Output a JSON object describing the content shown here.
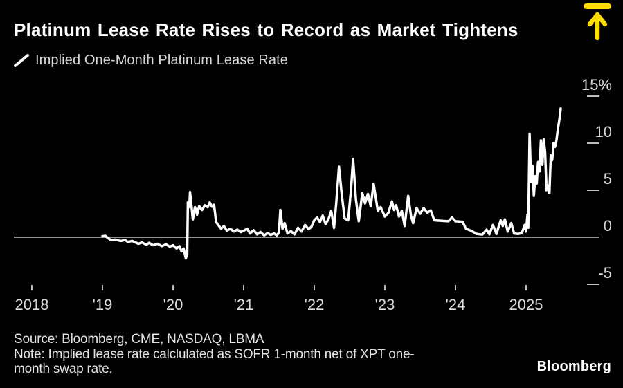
{
  "header": {
    "title": "Platinum Lease Rate Rises to Record as Market Tightens",
    "legend_label": "Implied One-Month Platinum Lease Rate"
  },
  "icons": {
    "record_arrow": "up-arrow-to-bar",
    "legend_mark": "line-swatch"
  },
  "colors": {
    "background": "#000000",
    "accent_yellow": "#FFDC00",
    "series_line": "#ffffff",
    "zero_line": "#919191",
    "tick": "#bdbdbd",
    "axis_label": "#dcdcdc"
  },
  "footer": {
    "source": "Source: Bloomberg, CME, NASDAQ, LBMA",
    "note": "Note: Implied lease rate calclulated as SOFR 1-month net of XPT one-month swap rate.",
    "brand": "Bloomberg"
  },
  "chart_data": {
    "type": "line",
    "title": "Platinum Lease Rate Rises to Record as Market Tightens",
    "series_name": "Implied One-Month Platinum Lease Rate",
    "unit": "%",
    "grid": false,
    "legend_position": "top-left",
    "y_axis_side": "right",
    "x_range": [
      2018,
      2025.9
    ],
    "y_range": [
      -5,
      15
    ],
    "x_ticks": [
      {
        "year": 2018,
        "label": "2018"
      },
      {
        "year": 2019,
        "label": "'19"
      },
      {
        "year": 2020,
        "label": "'20"
      },
      {
        "year": 2021,
        "label": "'21"
      },
      {
        "year": 2022,
        "label": "'22"
      },
      {
        "year": 2023,
        "label": "'23"
      },
      {
        "year": 2024,
        "label": "'24"
      },
      {
        "year": 2025,
        "label": "2025"
      }
    ],
    "y_ticks": [
      {
        "value": 15,
        "label": "15%"
      },
      {
        "value": 10,
        "label": "10"
      },
      {
        "value": 5,
        "label": "5"
      },
      {
        "value": 0,
        "label": "0"
      },
      {
        "value": -5,
        "label": "-5"
      }
    ],
    "points": [
      [
        2019.0,
        0.1
      ],
      [
        2019.04,
        0.15
      ],
      [
        2019.08,
        -0.1
      ],
      [
        2019.12,
        -0.3
      ],
      [
        2019.18,
        -0.25
      ],
      [
        2019.26,
        -0.4
      ],
      [
        2019.32,
        -0.3
      ],
      [
        2019.36,
        -0.5
      ],
      [
        2019.42,
        -0.4
      ],
      [
        2019.51,
        -0.7
      ],
      [
        2019.56,
        -0.55
      ],
      [
        2019.62,
        -0.8
      ],
      [
        2019.66,
        -0.6
      ],
      [
        2019.72,
        -0.85
      ],
      [
        2019.78,
        -0.7
      ],
      [
        2019.84,
        -0.95
      ],
      [
        2019.9,
        -0.75
      ],
      [
        2019.95,
        -1.0
      ],
      [
        2020.0,
        -0.85
      ],
      [
        2020.05,
        -1.2
      ],
      [
        2020.09,
        -0.95
      ],
      [
        2020.12,
        -1.5
      ],
      [
        2020.15,
        -1.2
      ],
      [
        2020.18,
        -2.25
      ],
      [
        2020.2,
        -1.8
      ],
      [
        2020.21,
        3.7
      ],
      [
        2020.23,
        3.2
      ],
      [
        2020.24,
        4.8
      ],
      [
        2020.26,
        3.4
      ],
      [
        2020.28,
        1.9
      ],
      [
        2020.31,
        3.2
      ],
      [
        2020.34,
        2.4
      ],
      [
        2020.37,
        3.3
      ],
      [
        2020.41,
        2.9
      ],
      [
        2020.45,
        3.4
      ],
      [
        2020.49,
        3.2
      ],
      [
        2020.52,
        3.7
      ],
      [
        2020.55,
        3.25
      ],
      [
        2020.58,
        3.45
      ],
      [
        2020.61,
        1.6
      ],
      [
        2020.64,
        1.3
      ],
      [
        2020.68,
        0.9
      ],
      [
        2020.72,
        1.2
      ],
      [
        2020.76,
        0.7
      ],
      [
        2020.81,
        0.9
      ],
      [
        2020.86,
        0.6
      ],
      [
        2020.91,
        0.8
      ],
      [
        2020.96,
        0.55
      ],
      [
        2021.0,
        0.7
      ],
      [
        2021.05,
        0.9
      ],
      [
        2021.09,
        0.4
      ],
      [
        2021.14,
        0.75
      ],
      [
        2021.19,
        0.3
      ],
      [
        2021.24,
        0.55
      ],
      [
        2021.29,
        0.2
      ],
      [
        2021.34,
        0.45
      ],
      [
        2021.38,
        0.25
      ],
      [
        2021.43,
        0.4
      ],
      [
        2021.47,
        0.2
      ],
      [
        2021.5,
        0.5
      ],
      [
        2021.52,
        2.9
      ],
      [
        2021.55,
        0.9
      ],
      [
        2021.58,
        1.5
      ],
      [
        2021.62,
        0.4
      ],
      [
        2021.67,
        0.65
      ],
      [
        2021.72,
        0.3
      ],
      [
        2021.77,
        1.0
      ],
      [
        2021.82,
        0.6
      ],
      [
        2021.87,
        1.3
      ],
      [
        2021.92,
        0.85
      ],
      [
        2021.96,
        1.1
      ],
      [
        2022.0,
        1.8
      ],
      [
        2022.04,
        2.1
      ],
      [
        2022.08,
        1.6
      ],
      [
        2022.12,
        2.3
      ],
      [
        2022.16,
        1.4
      ],
      [
        2022.2,
        1.9
      ],
      [
        2022.24,
        2.8
      ],
      [
        2022.28,
        1.0
      ],
      [
        2022.31,
        3.5
      ],
      [
        2022.35,
        7.5
      ],
      [
        2022.39,
        4.5
      ],
      [
        2022.43,
        2.0
      ],
      [
        2022.48,
        1.8
      ],
      [
        2022.52,
        5.0
      ],
      [
        2022.55,
        8.3
      ],
      [
        2022.59,
        4.0
      ],
      [
        2022.63,
        1.7
      ],
      [
        2022.68,
        4.7
      ],
      [
        2022.72,
        3.6
      ],
      [
        2022.76,
        4.6
      ],
      [
        2022.8,
        3.3
      ],
      [
        2022.84,
        5.7
      ],
      [
        2022.9,
        2.8
      ],
      [
        2022.94,
        3.2
      ],
      [
        2023.0,
        2.2
      ],
      [
        2023.05,
        2.6
      ],
      [
        2023.1,
        3.8
      ],
      [
        2023.13,
        2.9
      ],
      [
        2023.16,
        3.4
      ],
      [
        2023.2,
        2.2
      ],
      [
        2023.24,
        2.8
      ],
      [
        2023.28,
        1.2
      ],
      [
        2023.33,
        4.4
      ],
      [
        2023.37,
        2.3
      ],
      [
        2023.4,
        1.5
      ],
      [
        2023.45,
        3.1
      ],
      [
        2023.5,
        2.5
      ],
      [
        2023.55,
        3.1
      ],
      [
        2023.6,
        2.6
      ],
      [
        2023.65,
        2.85
      ],
      [
        2023.7,
        1.8
      ],
      [
        2023.8,
        1.75
      ],
      [
        2023.9,
        1.7
      ],
      [
        2023.95,
        2.1
      ],
      [
        2024.0,
        1.7
      ],
      [
        2024.1,
        1.65
      ],
      [
        2024.15,
        0.9
      ],
      [
        2024.22,
        0.7
      ],
      [
        2024.3,
        0.35
      ],
      [
        2024.38,
        0.28
      ],
      [
        2024.44,
        0.8
      ],
      [
        2024.48,
        0.3
      ],
      [
        2024.53,
        1.3
      ],
      [
        2024.58,
        0.35
      ],
      [
        2024.64,
        1.8
      ],
      [
        2024.67,
        1.2
      ],
      [
        2024.7,
        1.9
      ],
      [
        2024.74,
        0.6
      ],
      [
        2024.79,
        1.5
      ],
      [
        2024.83,
        0.4
      ],
      [
        2024.89,
        0.35
      ],
      [
        2024.94,
        0.45
      ],
      [
        2024.98,
        1.3
      ],
      [
        2025.0,
        0.6
      ],
      [
        2025.02,
        2.4
      ],
      [
        2025.03,
        1.0
      ],
      [
        2025.05,
        11.0
      ],
      [
        2025.07,
        5.9
      ],
      [
        2025.09,
        7.6
      ],
      [
        2025.11,
        4.4
      ],
      [
        2025.13,
        6.5
      ],
      [
        2025.15,
        5.7
      ],
      [
        2025.17,
        8.0
      ],
      [
        2025.19,
        7.0
      ],
      [
        2025.21,
        10.3
      ],
      [
        2025.23,
        7.7
      ],
      [
        2025.25,
        10.4
      ],
      [
        2025.27,
        9.0
      ],
      [
        2025.29,
        5.0
      ],
      [
        2025.31,
        5.5
      ],
      [
        2025.33,
        4.7
      ],
      [
        2025.35,
        8.7
      ],
      [
        2025.37,
        8.2
      ],
      [
        2025.39,
        10.0
      ],
      [
        2025.41,
        9.6
      ],
      [
        2025.43,
        10.3
      ],
      [
        2025.45,
        11.5
      ],
      [
        2025.47,
        12.4
      ],
      [
        2025.49,
        13.7
      ]
    ]
  }
}
